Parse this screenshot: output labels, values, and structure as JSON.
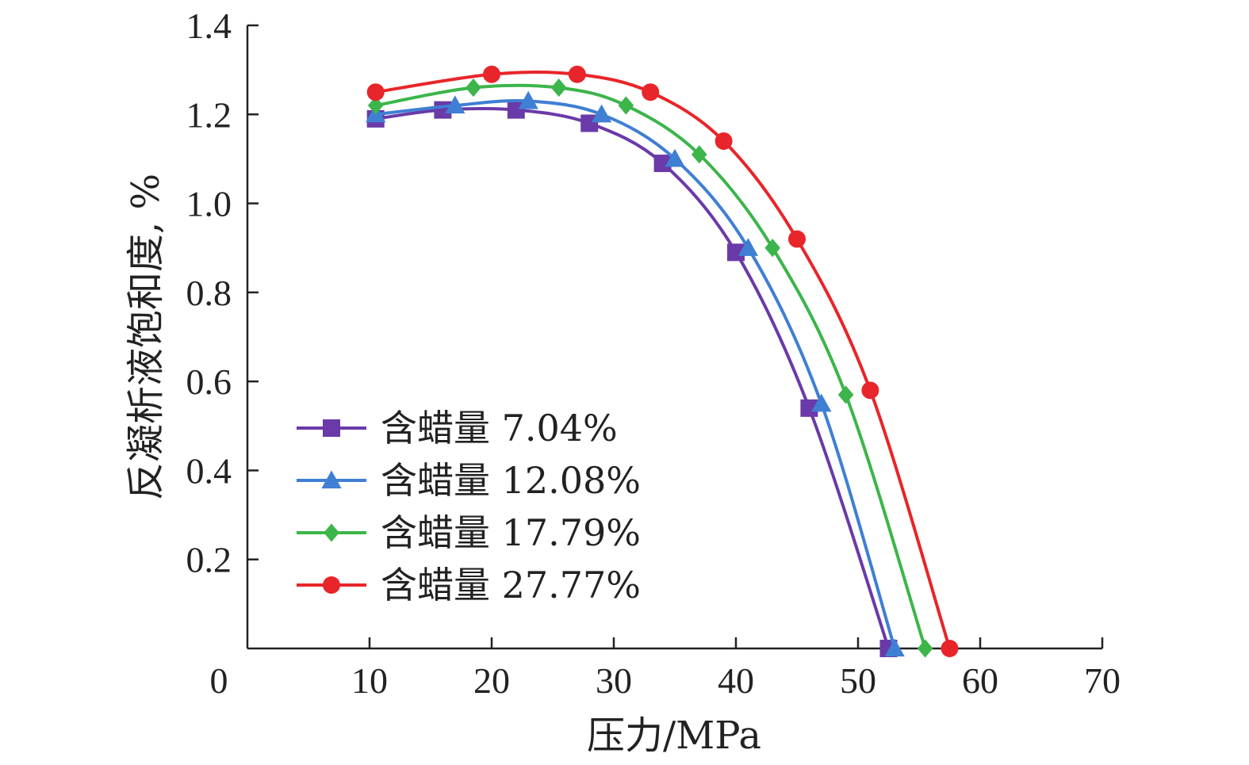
{
  "chart_data": {
    "type": "line",
    "title": "",
    "xlabel": "压力/MPa",
    "ylabel": "反凝析液饱和度, %",
    "xlim": [
      0,
      70
    ],
    "ylim": [
      0,
      1.4
    ],
    "xticks": [
      "0",
      "10",
      "20",
      "30",
      "40",
      "50",
      "60",
      "70"
    ],
    "yticks": [
      "0.2",
      "0.4",
      "0.6",
      "0.8",
      "1.0",
      "1.2",
      "1.4"
    ],
    "grid": false,
    "legend_position": "lower-left",
    "smooth": true,
    "series": [
      {
        "name": "含蜡量 7.04%",
        "color": "#6a3aa8",
        "marker": "square",
        "x": [
          10.5,
          16,
          22,
          28,
          34,
          40,
          46,
          52.5
        ],
        "y": [
          1.19,
          1.21,
          1.21,
          1.18,
          1.09,
          0.89,
          0.54,
          0
        ]
      },
      {
        "name": "含蜡量 12.08%",
        "color": "#3f7fd4",
        "marker": "triangle",
        "x": [
          10.5,
          17,
          23,
          29,
          35,
          41,
          47,
          53
        ],
        "y": [
          1.2,
          1.22,
          1.23,
          1.2,
          1.1,
          0.9,
          0.55,
          0
        ]
      },
      {
        "name": "含蜡量 17.79%",
        "color": "#3cb54a",
        "marker": "diamond",
        "x": [
          10.5,
          18.5,
          25.5,
          31,
          37,
          43,
          49,
          55.5
        ],
        "y": [
          1.22,
          1.26,
          1.26,
          1.22,
          1.11,
          0.9,
          0.57,
          0
        ]
      },
      {
        "name": "含蜡量 27.77%",
        "color": "#e8252a",
        "marker": "circle",
        "x": [
          10.5,
          20,
          27,
          33,
          39,
          45,
          51,
          57.5
        ],
        "y": [
          1.25,
          1.29,
          1.29,
          1.25,
          1.14,
          0.92,
          0.58,
          0
        ]
      }
    ]
  }
}
